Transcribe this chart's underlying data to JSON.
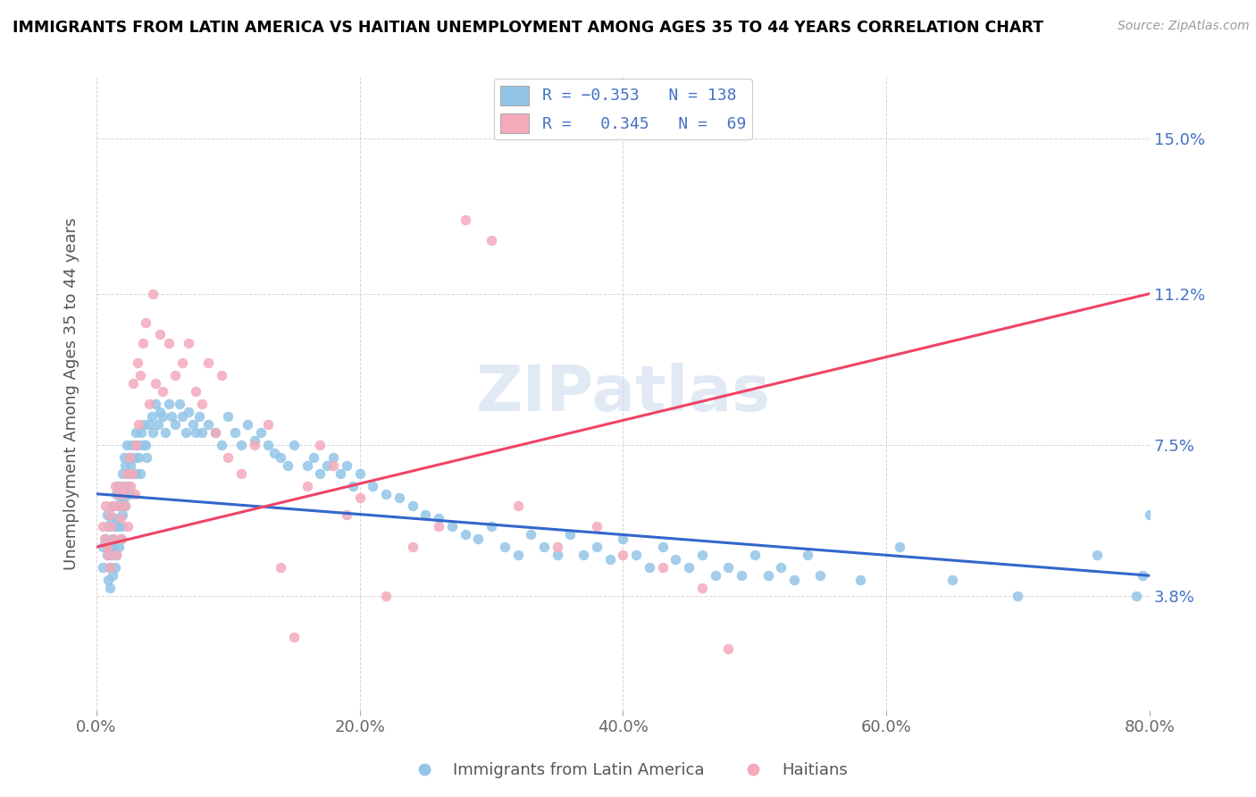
{
  "title": "IMMIGRANTS FROM LATIN AMERICA VS HAITIAN UNEMPLOYMENT AMONG AGES 35 TO 44 YEARS CORRELATION CHART",
  "source": "Source: ZipAtlas.com",
  "ylabel": "Unemployment Among Ages 35 to 44 years",
  "xlim": [
    0.0,
    0.8
  ],
  "ylim": [
    0.01,
    0.165
  ],
  "xticks": [
    0.0,
    0.2,
    0.4,
    0.6,
    0.8
  ],
  "xticklabels": [
    "0.0%",
    "20.0%",
    "40.0%",
    "60.0%",
    "80.0%"
  ],
  "ytick_positions": [
    0.038,
    0.075,
    0.112,
    0.15
  ],
  "ytick_labels": [
    "3.8%",
    "7.5%",
    "11.2%",
    "15.0%"
  ],
  "legend_label1": "Immigrants from Latin America",
  "legend_label2": "Haitians",
  "blue_color": "#92C5E8",
  "pink_color": "#F4AABB",
  "blue_line_color": "#3366CC",
  "pink_line_color": "#EE4466",
  "watermark": "ZIPatlas",
  "blue_trend_x": [
    0.0,
    0.8
  ],
  "blue_trend_y": [
    0.063,
    0.043
  ],
  "pink_trend_x": [
    0.0,
    0.8
  ],
  "pink_trend_y": [
    0.05,
    0.112
  ],
  "blue_x": [
    0.005,
    0.005,
    0.007,
    0.008,
    0.008,
    0.009,
    0.009,
    0.01,
    0.01,
    0.01,
    0.011,
    0.011,
    0.012,
    0.012,
    0.013,
    0.013,
    0.014,
    0.014,
    0.015,
    0.015,
    0.015,
    0.016,
    0.016,
    0.017,
    0.017,
    0.018,
    0.018,
    0.019,
    0.02,
    0.02,
    0.021,
    0.021,
    0.022,
    0.022,
    0.023,
    0.023,
    0.024,
    0.025,
    0.025,
    0.026,
    0.027,
    0.028,
    0.029,
    0.03,
    0.03,
    0.031,
    0.032,
    0.033,
    0.034,
    0.035,
    0.036,
    0.037,
    0.038,
    0.04,
    0.042,
    0.043,
    0.045,
    0.047,
    0.048,
    0.05,
    0.052,
    0.055,
    0.057,
    0.06,
    0.063,
    0.065,
    0.068,
    0.07,
    0.073,
    0.075,
    0.078,
    0.08,
    0.085,
    0.09,
    0.095,
    0.1,
    0.105,
    0.11,
    0.115,
    0.12,
    0.125,
    0.13,
    0.135,
    0.14,
    0.145,
    0.15,
    0.16,
    0.165,
    0.17,
    0.175,
    0.18,
    0.185,
    0.19,
    0.195,
    0.2,
    0.21,
    0.22,
    0.23,
    0.24,
    0.25,
    0.26,
    0.27,
    0.28,
    0.29,
    0.3,
    0.31,
    0.32,
    0.33,
    0.34,
    0.35,
    0.36,
    0.37,
    0.38,
    0.39,
    0.4,
    0.41,
    0.42,
    0.43,
    0.44,
    0.45,
    0.46,
    0.47,
    0.48,
    0.49,
    0.5,
    0.51,
    0.52,
    0.53,
    0.54,
    0.55,
    0.58,
    0.61,
    0.65,
    0.7,
    0.76,
    0.79,
    0.795,
    0.8
  ],
  "blue_y": [
    0.05,
    0.045,
    0.052,
    0.058,
    0.048,
    0.042,
    0.055,
    0.05,
    0.045,
    0.04,
    0.057,
    0.048,
    0.052,
    0.043,
    0.06,
    0.05,
    0.055,
    0.045,
    0.063,
    0.057,
    0.048,
    0.065,
    0.055,
    0.06,
    0.05,
    0.062,
    0.052,
    0.055,
    0.068,
    0.058,
    0.072,
    0.062,
    0.07,
    0.06,
    0.075,
    0.065,
    0.068,
    0.072,
    0.063,
    0.07,
    0.075,
    0.068,
    0.072,
    0.078,
    0.068,
    0.075,
    0.072,
    0.068,
    0.078,
    0.075,
    0.08,
    0.075,
    0.072,
    0.08,
    0.082,
    0.078,
    0.085,
    0.08,
    0.083,
    0.082,
    0.078,
    0.085,
    0.082,
    0.08,
    0.085,
    0.082,
    0.078,
    0.083,
    0.08,
    0.078,
    0.082,
    0.078,
    0.08,
    0.078,
    0.075,
    0.082,
    0.078,
    0.075,
    0.08,
    0.076,
    0.078,
    0.075,
    0.073,
    0.072,
    0.07,
    0.075,
    0.07,
    0.072,
    0.068,
    0.07,
    0.072,
    0.068,
    0.07,
    0.065,
    0.068,
    0.065,
    0.063,
    0.062,
    0.06,
    0.058,
    0.057,
    0.055,
    0.053,
    0.052,
    0.055,
    0.05,
    0.048,
    0.053,
    0.05,
    0.048,
    0.053,
    0.048,
    0.05,
    0.047,
    0.052,
    0.048,
    0.045,
    0.05,
    0.047,
    0.045,
    0.048,
    0.043,
    0.045,
    0.043,
    0.048,
    0.043,
    0.045,
    0.042,
    0.048,
    0.043,
    0.042,
    0.05,
    0.042,
    0.038,
    0.048,
    0.038,
    0.043,
    0.058
  ],
  "pink_x": [
    0.005,
    0.006,
    0.007,
    0.008,
    0.009,
    0.01,
    0.01,
    0.011,
    0.012,
    0.013,
    0.014,
    0.015,
    0.016,
    0.017,
    0.018,
    0.019,
    0.02,
    0.021,
    0.022,
    0.023,
    0.024,
    0.025,
    0.026,
    0.027,
    0.028,
    0.029,
    0.03,
    0.031,
    0.032,
    0.033,
    0.035,
    0.037,
    0.04,
    0.043,
    0.045,
    0.048,
    0.05,
    0.055,
    0.06,
    0.065,
    0.07,
    0.075,
    0.08,
    0.085,
    0.09,
    0.095,
    0.1,
    0.11,
    0.12,
    0.13,
    0.14,
    0.15,
    0.16,
    0.17,
    0.18,
    0.19,
    0.2,
    0.22,
    0.24,
    0.26,
    0.28,
    0.3,
    0.32,
    0.35,
    0.38,
    0.4,
    0.43,
    0.46,
    0.48
  ],
  "pink_y": [
    0.055,
    0.052,
    0.06,
    0.05,
    0.048,
    0.058,
    0.045,
    0.055,
    0.06,
    0.052,
    0.065,
    0.048,
    0.063,
    0.06,
    0.057,
    0.052,
    0.065,
    0.063,
    0.06,
    0.068,
    0.055,
    0.072,
    0.065,
    0.068,
    0.09,
    0.063,
    0.075,
    0.095,
    0.08,
    0.092,
    0.1,
    0.105,
    0.085,
    0.112,
    0.09,
    0.102,
    0.088,
    0.1,
    0.092,
    0.095,
    0.1,
    0.088,
    0.085,
    0.095,
    0.078,
    0.092,
    0.072,
    0.068,
    0.075,
    0.08,
    0.045,
    0.028,
    0.065,
    0.075,
    0.07,
    0.058,
    0.062,
    0.038,
    0.05,
    0.055,
    0.13,
    0.125,
    0.06,
    0.05,
    0.055,
    0.048,
    0.045,
    0.04,
    0.025
  ]
}
